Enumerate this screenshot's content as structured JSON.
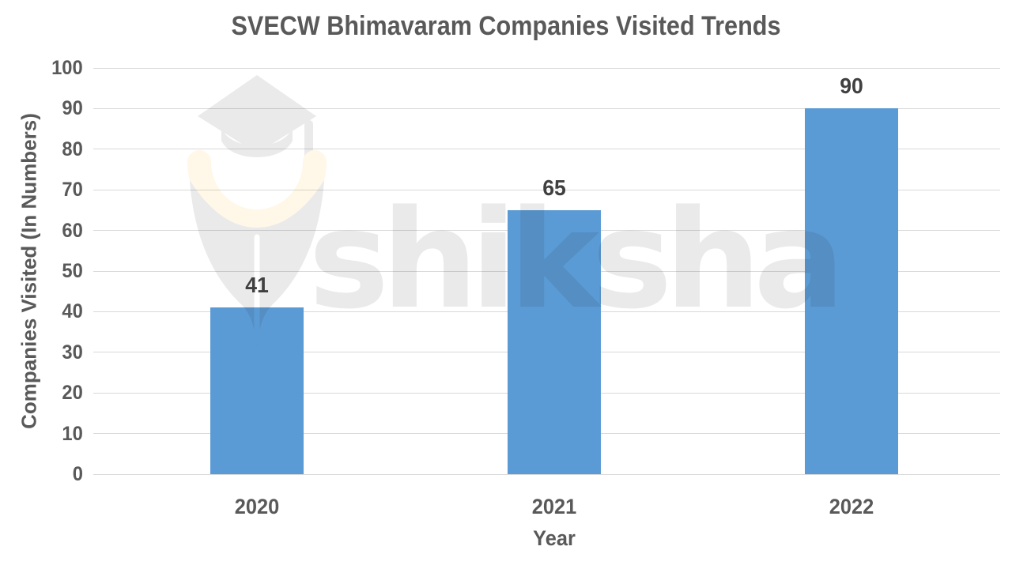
{
  "chart_data": {
    "type": "bar",
    "title": "SVECW Bhimavaram Companies Visited Trends",
    "categories": [
      "2020",
      "2021",
      "2022"
    ],
    "values": [
      41,
      65,
      90
    ],
    "data_labels": [
      "41",
      "65",
      "90"
    ],
    "xlabel": "Year",
    "ylabel": "Companies Visited (In Numbers)",
    "ylim": [
      0,
      100
    ],
    "yticks": [
      100,
      90,
      80,
      70,
      60,
      50,
      40,
      30,
      20,
      10,
      0
    ],
    "grid": "horizontal",
    "legend_position": "none",
    "bar_color": "#5B9BD5"
  },
  "watermark": {
    "text": "shiksha",
    "logo_icon": "shiksha-pen-nib-graduation-cap-icon",
    "gray": "#EAEAEA",
    "cream": "#FFF8E8"
  },
  "colors": {
    "background": "#FFFFFF",
    "title_text": "#595959",
    "axis_text": "#595959",
    "data_label_text": "#404040",
    "gridline": "#D9D9D9"
  }
}
